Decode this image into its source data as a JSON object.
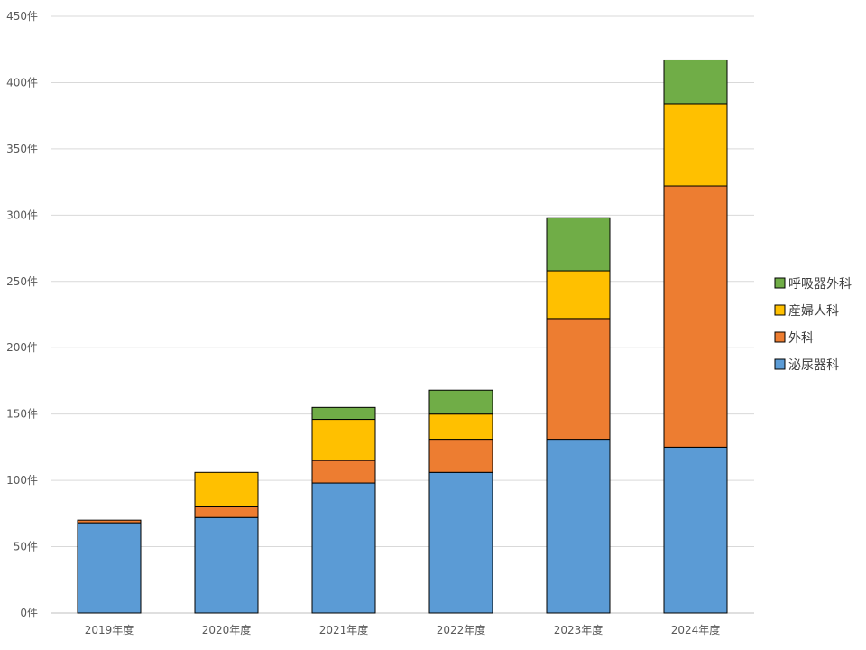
{
  "chart_data": {
    "type": "bar",
    "stacked": true,
    "categories": [
      "2019年度",
      "2020年度",
      "2021年度",
      "2022年度",
      "2023年度",
      "2024年度"
    ],
    "series": [
      {
        "name": "泌尿器科",
        "color": "#5B9BD5",
        "values": [
          68,
          72,
          98,
          106,
          131,
          125
        ]
      },
      {
        "name": "外科",
        "color": "#ED7D31",
        "values": [
          2,
          8,
          17,
          25,
          91,
          197
        ]
      },
      {
        "name": "産婦人科",
        "color": "#FFC000",
        "values": [
          0,
          26,
          31,
          19,
          36,
          62
        ]
      },
      {
        "name": "呼吸器外科",
        "color": "#70AD47",
        "values": [
          0,
          0,
          9,
          18,
          40,
          33
        ]
      }
    ],
    "ylim": [
      0,
      450
    ],
    "y_tick_step": 50,
    "y_tick_labels": [
      "0件",
      "50件",
      "100件",
      "150件",
      "200件",
      "250件",
      "300件",
      "350件",
      "400件",
      "450件"
    ],
    "grid": true,
    "legend_position": "right"
  }
}
